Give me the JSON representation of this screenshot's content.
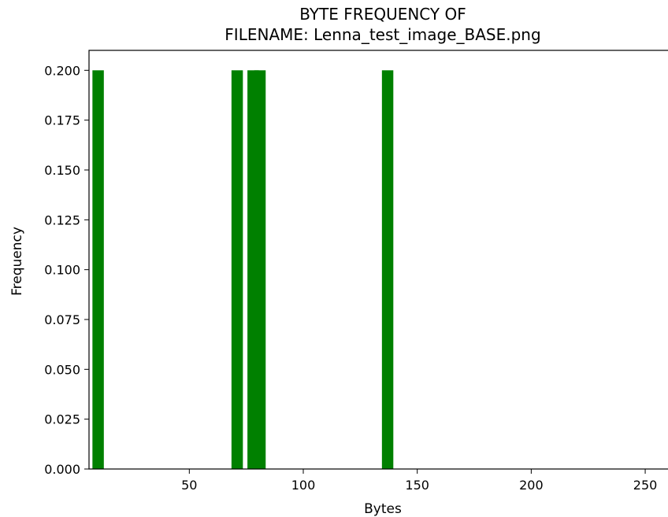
{
  "chart_data": {
    "type": "bar",
    "title": "BYTE FREQUENCY OF\nFILENAME: Lenna_test_image_BASE.png",
    "xlabel": "Bytes",
    "ylabel": "Frequency",
    "bar_color": "#008000",
    "x": [
      10,
      71,
      78,
      81,
      137
    ],
    "values": [
      0.2,
      0.2,
      0.2,
      0.2,
      0.2
    ],
    "bar_width": 5,
    "xlim": [
      6,
      260
    ],
    "ylim": [
      0,
      0.21
    ],
    "xticks": [
      50,
      100,
      150,
      200,
      250
    ],
    "xtick_labels": [
      "50",
      "100",
      "150",
      "200",
      "250"
    ],
    "yticks": [
      0,
      0.025,
      0.05,
      0.075,
      0.1,
      0.125,
      0.15,
      0.175,
      0.2
    ],
    "ytick_labels": [
      "0.000",
      "0.025",
      "0.050",
      "0.075",
      "0.100",
      "0.125",
      "0.150",
      "0.175",
      "0.200"
    ],
    "grid": false,
    "legend": "none"
  }
}
